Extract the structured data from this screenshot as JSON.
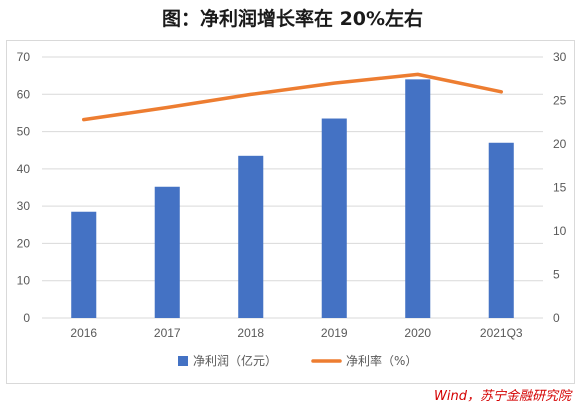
{
  "title": "图：净利润增长率在 20%左右",
  "source": "Wind，苏宁金融研究院",
  "colors": {
    "bar": "#4472C4",
    "line": "#ED7D31",
    "grid": "#d9d9d9",
    "axis_text": "#595959"
  },
  "chart_data": {
    "type": "bar",
    "categories": [
      "2016",
      "2017",
      "2018",
      "2019",
      "2020",
      "2021Q3"
    ],
    "series": [
      {
        "name": "净利润（亿元）",
        "type": "bar",
        "axis": "left",
        "values": [
          28.5,
          35.2,
          43.5,
          53.5,
          64.0,
          47.0
        ]
      },
      {
        "name": "净利率（%）",
        "type": "line",
        "axis": "right",
        "values": [
          22.8,
          24.2,
          25.7,
          27.0,
          28.0,
          26.0
        ]
      }
    ],
    "yleft": {
      "lim": [
        0,
        70
      ],
      "ticks": [
        "0",
        "10",
        "20",
        "30",
        "40",
        "50",
        "60",
        "70"
      ]
    },
    "yright": {
      "lim": [
        0,
        30
      ],
      "ticks": [
        "0",
        "5",
        "10",
        "15",
        "20",
        "25",
        "30"
      ]
    },
    "grid": true,
    "legend": "bottom"
  }
}
